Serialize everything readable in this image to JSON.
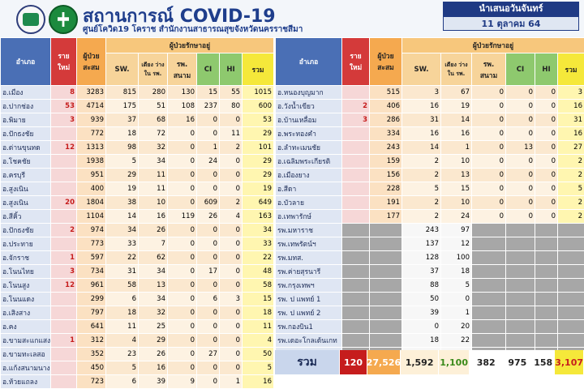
{
  "header": {
    "title": "สถานการณ์ COVID-19",
    "subtitle": "ศูนย์โควิด19 โคราช สำนักงานสาธารณสุขจังหวัดนครราชสีมา",
    "date_label": "นำเสนอวันจันทร์",
    "date_value": "11 ตุลาคม 64"
  },
  "columns": {
    "district": "อำเภอ",
    "new": "ราย ใหม่",
    "cumulative": "ผู้ป่วย สะสม",
    "group": "ผู้ป่วยรักษาอยู่",
    "sw": "SW.",
    "bed": "เตียง ว่าง ใน รพ.",
    "field": "รพ. สนาม",
    "ci": "CI",
    "hi": "HI",
    "total": "รวม"
  },
  "left_rows": [
    {
      "name": "อ.เมือง",
      "new": "8",
      "cum": "3283",
      "sw": "815",
      "bed": "280",
      "field": "130",
      "ci": "15",
      "hi": "55",
      "total": "1015"
    },
    {
      "name": "อ.ปากช่อง",
      "new": "53",
      "cum": "4714",
      "sw": "175",
      "bed": "51",
      "field": "108",
      "ci": "237",
      "hi": "80",
      "total": "600"
    },
    {
      "name": "อ.พิมาย",
      "new": "3",
      "cum": "939",
      "sw": "37",
      "bed": "68",
      "field": "16",
      "ci": "0",
      "hi": "0",
      "total": "53"
    },
    {
      "name": "อ.ปักธงชัย",
      "new": "",
      "cum": "772",
      "sw": "18",
      "bed": "72",
      "field": "0",
      "ci": "0",
      "hi": "11",
      "total": "29"
    },
    {
      "name": "อ.ด่านขุนทด",
      "new": "12",
      "cum": "1313",
      "sw": "98",
      "bed": "32",
      "field": "0",
      "ci": "1",
      "hi": "2",
      "total": "101"
    },
    {
      "name": "อ.โชคชัย",
      "new": "",
      "cum": "1938",
      "sw": "5",
      "bed": "34",
      "field": "0",
      "ci": "24",
      "hi": "0",
      "total": "29"
    },
    {
      "name": "อ.ครบุรี",
      "new": "",
      "cum": "951",
      "sw": "29",
      "bed": "11",
      "field": "0",
      "ci": "0",
      "hi": "0",
      "total": "29"
    },
    {
      "name": "อ.สูงเนิน",
      "new": "",
      "cum": "400",
      "sw": "19",
      "bed": "11",
      "field": "0",
      "ci": "0",
      "hi": "0",
      "total": "19"
    },
    {
      "name": "อ.สูงเนิน",
      "new": "20",
      "cum": "1804",
      "sw": "38",
      "bed": "10",
      "field": "0",
      "ci": "609",
      "hi": "2",
      "total": "649"
    },
    {
      "name": "อ.สีคิ้ว",
      "new": "",
      "cum": "1104",
      "sw": "14",
      "bed": "16",
      "field": "119",
      "ci": "26",
      "hi": "4",
      "total": "163"
    },
    {
      "name": "อ.ปักธงชัย",
      "new": "2",
      "cum": "974",
      "sw": "34",
      "bed": "26",
      "field": "0",
      "ci": "0",
      "hi": "0",
      "total": "34"
    },
    {
      "name": "อ.ประทาย",
      "new": "",
      "cum": "773",
      "sw": "33",
      "bed": "7",
      "field": "0",
      "ci": "0",
      "hi": "0",
      "total": "33"
    },
    {
      "name": "อ.จักราช",
      "new": "1",
      "cum": "597",
      "sw": "22",
      "bed": "62",
      "field": "0",
      "ci": "0",
      "hi": "0",
      "total": "22"
    },
    {
      "name": "อ.โนนไทย",
      "new": "3",
      "cum": "734",
      "sw": "31",
      "bed": "34",
      "field": "0",
      "ci": "17",
      "hi": "0",
      "total": "48"
    },
    {
      "name": "อ.โนนสูง",
      "new": "12",
      "cum": "961",
      "sw": "58",
      "bed": "13",
      "field": "0",
      "ci": "0",
      "hi": "0",
      "total": "58"
    },
    {
      "name": "อ.โนนแดง",
      "new": "",
      "cum": "299",
      "sw": "6",
      "bed": "34",
      "field": "0",
      "ci": "6",
      "hi": "3",
      "total": "15"
    },
    {
      "name": "อ.เสิงสาง",
      "new": "",
      "cum": "797",
      "sw": "18",
      "bed": "32",
      "field": "0",
      "ci": "0",
      "hi": "0",
      "total": "18"
    },
    {
      "name": "อ.คง",
      "new": "",
      "cum": "641",
      "sw": "11",
      "bed": "25",
      "field": "0",
      "ci": "0",
      "hi": "0",
      "total": "11"
    },
    {
      "name": "อ.ขามสะแกแสง",
      "new": "1",
      "cum": "312",
      "sw": "4",
      "bed": "29",
      "field": "0",
      "ci": "0",
      "hi": "0",
      "total": "4"
    },
    {
      "name": "อ.ขามทะเลสอ",
      "new": "",
      "cum": "352",
      "sw": "23",
      "bed": "26",
      "field": "0",
      "ci": "27",
      "hi": "0",
      "total": "50"
    },
    {
      "name": "อ.แก้งสนามนาง",
      "new": "",
      "cum": "450",
      "sw": "5",
      "bed": "16",
      "field": "0",
      "ci": "0",
      "hi": "0",
      "total": "5"
    },
    {
      "name": "อ.ห้วยแถลง",
      "new": "",
      "cum": "723",
      "sw": "6",
      "bed": "39",
      "field": "9",
      "ci": "0",
      "hi": "1",
      "total": "16"
    }
  ],
  "right_rows": [
    {
      "name": "อ.หนองบุญมาก",
      "new": "",
      "cum": "515",
      "sw": "3",
      "bed": "67",
      "field": "0",
      "ci": "0",
      "hi": "0",
      "total": "3"
    },
    {
      "name": "อ.วังน้ำเขียว",
      "new": "2",
      "cum": "406",
      "sw": "16",
      "bed": "19",
      "field": "0",
      "ci": "0",
      "hi": "0",
      "total": "16"
    },
    {
      "name": "อ.บ้านเหลื่อม",
      "new": "3",
      "cum": "286",
      "sw": "31",
      "bed": "14",
      "field": "0",
      "ci": "0",
      "hi": "0",
      "total": "31"
    },
    {
      "name": "อ.พระทองคำ",
      "new": "",
      "cum": "334",
      "sw": "16",
      "bed": "16",
      "field": "0",
      "ci": "0",
      "hi": "0",
      "total": "16"
    },
    {
      "name": "อ.ลำทะเมนชัย",
      "new": "",
      "cum": "243",
      "sw": "14",
      "bed": "1",
      "field": "0",
      "ci": "13",
      "hi": "0",
      "total": "27"
    },
    {
      "name": "อ.เฉลิมพระเกียรติ",
      "new": "",
      "cum": "159",
      "sw": "2",
      "bed": "10",
      "field": "0",
      "ci": "0",
      "hi": "0",
      "total": "2"
    },
    {
      "name": "อ.เมืองยาง",
      "new": "",
      "cum": "156",
      "sw": "2",
      "bed": "13",
      "field": "0",
      "ci": "0",
      "hi": "0",
      "total": "2"
    },
    {
      "name": "อ.สีดา",
      "new": "",
      "cum": "228",
      "sw": "5",
      "bed": "15",
      "field": "0",
      "ci": "0",
      "hi": "0",
      "total": "5"
    },
    {
      "name": "อ.บัวลาย",
      "new": "",
      "cum": "191",
      "sw": "2",
      "bed": "10",
      "field": "0",
      "ci": "0",
      "hi": "0",
      "total": "2"
    },
    {
      "name": "อ.เทพารักษ์",
      "new": "",
      "cum": "177",
      "sw": "2",
      "bed": "24",
      "field": "0",
      "ci": "0",
      "hi": "0",
      "total": "2"
    }
  ],
  "hospital_rows": [
    {
      "name": "รพ.มหาราช",
      "sw": "243",
      "bed": "97"
    },
    {
      "name": "รพ.เทพรัตน์ฯ",
      "sw": "137",
      "bed": "12"
    },
    {
      "name": "รพ.มทส.",
      "sw": "128",
      "bed": "100"
    },
    {
      "name": "รพ.ค่ายสุรนารี",
      "sw": "37",
      "bed": "18"
    },
    {
      "name": "รพ.กรุงเทพฯ",
      "sw": "88",
      "bed": "5"
    },
    {
      "name": "รพ. ป แพทย์ 1",
      "sw": "50",
      "bed": "0"
    },
    {
      "name": "รพ. ป แพทย์ 2",
      "sw": "39",
      "bed": "1"
    },
    {
      "name": "รพ.กองบิน1",
      "sw": "0",
      "bed": "20"
    },
    {
      "name": "รพ.เดอะโกลเด้นเกท",
      "sw": "18",
      "bed": "22"
    },
    {
      "name": "รพ.ราชสีมาฮอสพิทอล",
      "sw": "75",
      "bed": "5"
    }
  ],
  "totals": {
    "label": "รวม",
    "new": "120",
    "cumulative": "27,526",
    "sw": "1,592",
    "bed": "1,100",
    "field": "382",
    "ci": "975",
    "hi": "158",
    "total": "3,107"
  }
}
